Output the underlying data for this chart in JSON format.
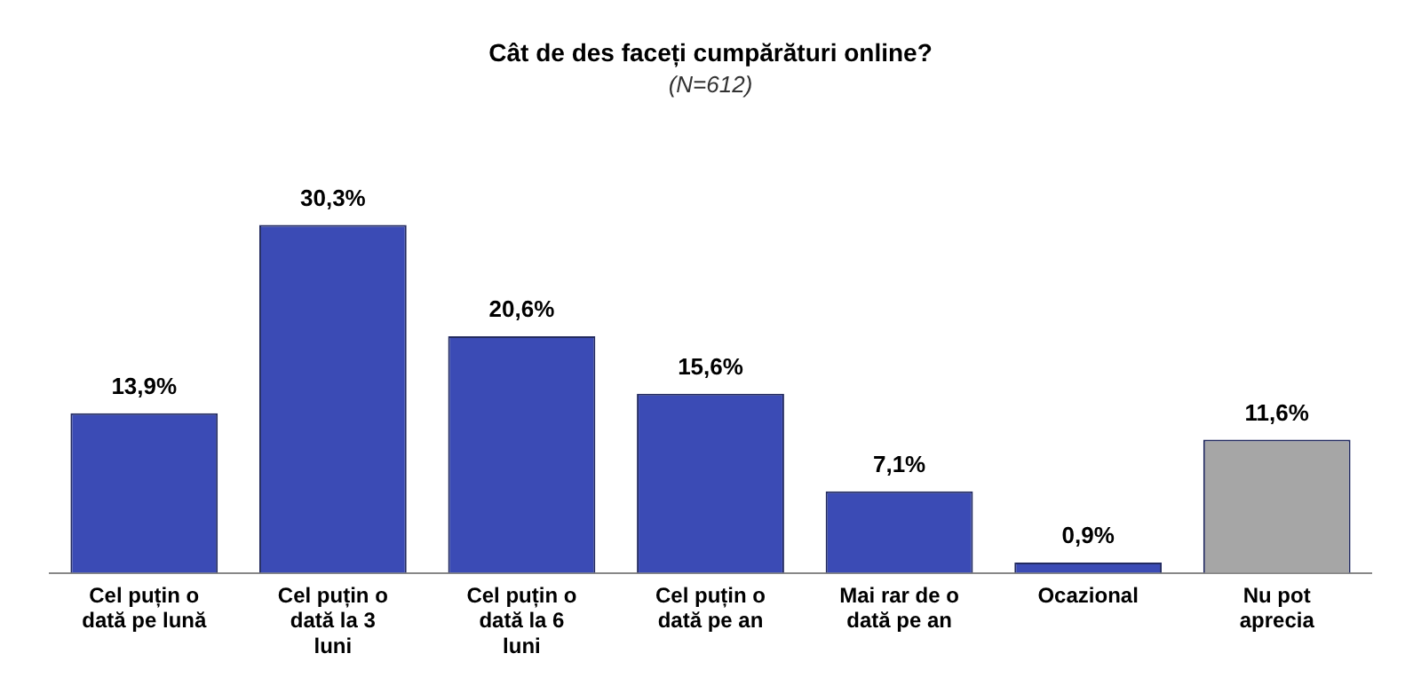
{
  "chart_data": {
    "type": "bar",
    "title": "Cât de des faceți cumpărături online?",
    "subtitle": "(N=612)",
    "categories": [
      "Cel puțin o dată pe lună",
      "Cel puțin o dată la 3 luni",
      "Cel puțin o dată la 6 luni",
      "Cel puțin o dată pe an",
      "Mai rar de o dată pe an",
      "Ocazional",
      "Nu pot aprecia"
    ],
    "values": [
      13.9,
      30.3,
      20.6,
      15.6,
      7.1,
      0.9,
      11.6
    ],
    "colors": [
      "#3b4bb5",
      "#3b4bb5",
      "#3b4bb5",
      "#3b4bb5",
      "#3b4bb5",
      "#3b4bb5",
      "#a6a6a6"
    ],
    "value_labels": [
      "13,9%",
      "30,3%",
      "20,6%",
      "15,6%",
      "7,1%",
      "0,9%",
      "11,6%"
    ],
    "tick_labels": "x",
    "grid": false,
    "legend": false
  }
}
